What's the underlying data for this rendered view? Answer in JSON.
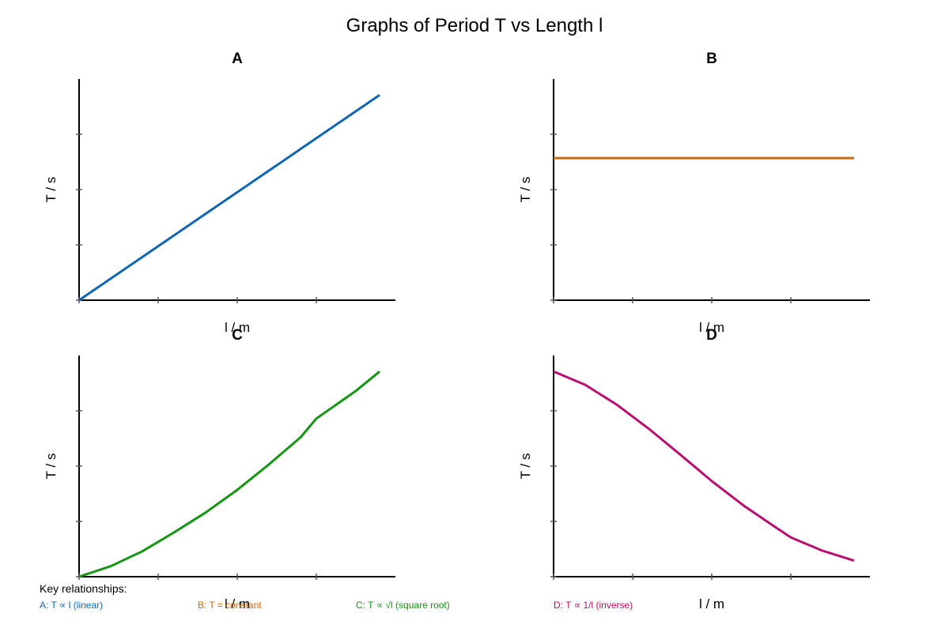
{
  "title": "Graphs of Period T vs Length l",
  "key": {
    "heading": "Key relationships:",
    "items": [
      {
        "text": "A: T ∝ l (linear)",
        "color": "#1166b3"
      },
      {
        "text": "B: T = constant",
        "color": "#c96a10"
      },
      {
        "text": "C: T ∝ √l (square root)",
        "color": "#149514"
      },
      {
        "text": "D: T ∝ 1/l (inverse)",
        "color": "#b8106f"
      }
    ]
  },
  "chart_data": [
    {
      "type": "line",
      "title": "A",
      "xlabel": "l / m",
      "ylabel": "T / s",
      "xlim": [
        0,
        4
      ],
      "ylim": [
        0,
        4
      ],
      "xticks": [
        0,
        1,
        2,
        3,
        4
      ],
      "yticks": [
        0,
        1,
        2,
        3,
        4
      ],
      "grid": false,
      "series": [
        {
          "color": "#1166b3",
          "x": [
            0,
            3.8
          ],
          "y": [
            0,
            3.71
          ]
        }
      ]
    },
    {
      "type": "line",
      "title": "B",
      "xlabel": "l / m",
      "ylabel": "T / s",
      "xlim": [
        0,
        4
      ],
      "ylim": [
        0,
        4
      ],
      "xticks": [
        0,
        1,
        2,
        3,
        4
      ],
      "yticks": [
        0,
        1,
        2,
        3,
        4
      ],
      "grid": false,
      "series": [
        {
          "color": "#c96a10",
          "x": [
            0,
            3.8
          ],
          "y": [
            2.57,
            2.57
          ]
        }
      ]
    },
    {
      "type": "line",
      "title": "C",
      "xlabel": "l / m",
      "ylabel": "T / s",
      "xlim": [
        0,
        4
      ],
      "ylim": [
        0,
        4
      ],
      "xticks": [
        0,
        1,
        2,
        3,
        4
      ],
      "yticks": [
        0,
        1,
        2,
        3,
        4
      ],
      "grid": false,
      "series": [
        {
          "color": "#149514",
          "x": [
            0,
            0.4,
            0.8,
            1.2,
            1.6,
            2.0,
            2.4,
            2.8,
            3.0,
            3.2,
            3.5,
            3.8
          ],
          "y": [
            0,
            0.19,
            0.46,
            0.8,
            1.16,
            1.57,
            2.03,
            2.52,
            2.86,
            3.06,
            3.36,
            3.71
          ]
        }
      ]
    },
    {
      "type": "line",
      "title": "D",
      "xlabel": "l / m",
      "ylabel": "T / s",
      "xlim": [
        0,
        4
      ],
      "ylim": [
        0,
        4
      ],
      "xticks": [
        0,
        1,
        2,
        3,
        4
      ],
      "yticks": [
        0,
        1,
        2,
        3,
        4
      ],
      "grid": false,
      "series": [
        {
          "color": "#b8106f",
          "x": [
            0,
            0.4,
            0.8,
            1.2,
            1.6,
            2.0,
            2.4,
            2.8,
            3.0,
            3.4,
            3.8
          ],
          "y": [
            3.71,
            3.47,
            3.11,
            2.68,
            2.21,
            1.73,
            1.29,
            0.9,
            0.71,
            0.47,
            0.29
          ]
        }
      ]
    }
  ]
}
